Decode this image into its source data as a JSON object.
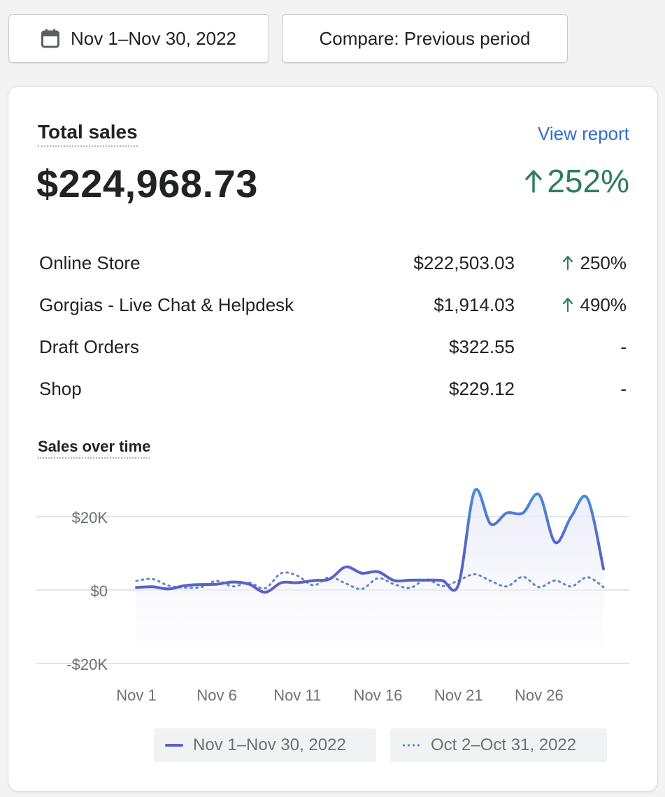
{
  "toolbar": {
    "date_range": "Nov 1–Nov 30, 2022",
    "compare": "Compare: Previous period"
  },
  "card": {
    "title": "Total sales",
    "view_report": "View report",
    "total": "$224,968.73",
    "total_change": "252%",
    "rows": [
      {
        "name": "Online Store",
        "amount": "$222,503.03",
        "change": "250%",
        "trend": "up"
      },
      {
        "name": "Gorgias - Live Chat & Helpdesk",
        "amount": "$1,914.03",
        "change": "490%",
        "trend": "up"
      },
      {
        "name": "Draft Orders",
        "amount": "$322.55",
        "change": "-",
        "trend": "none"
      },
      {
        "name": "Shop",
        "amount": "$229.12",
        "change": "-",
        "trend": "none"
      }
    ],
    "chart_title": "Sales over time"
  },
  "colors": {
    "accent": "#2c6ecb",
    "positive": "#2e7d5b",
    "current_series": "#5c63c9",
    "previous_series": "#5b8bc4"
  },
  "chart_data": {
    "type": "line",
    "ylim": [
      -20000,
      30000
    ],
    "y_ticks": [
      20000,
      0,
      -20000
    ],
    "y_tick_labels": [
      "$20K",
      "$0",
      "-$20K"
    ],
    "x_ticks": [
      1,
      6,
      11,
      16,
      21,
      26
    ],
    "x_tick_labels": [
      "Nov 1",
      "Nov 6",
      "Nov 11",
      "Nov 16",
      "Nov 21",
      "Nov 26"
    ],
    "x": [
      1,
      2,
      3,
      4,
      5,
      6,
      7,
      8,
      9,
      10,
      11,
      12,
      13,
      14,
      15,
      16,
      17,
      18,
      19,
      20,
      21,
      22,
      23,
      24,
      25,
      26,
      27,
      28,
      29,
      30
    ],
    "series": [
      {
        "name": "Nov 1–Nov 30, 2022",
        "style": "solid",
        "values": [
          700,
          900,
          300,
          1200,
          1500,
          1600,
          2200,
          1600,
          -600,
          2000,
          2000,
          2600,
          3000,
          6300,
          4600,
          5000,
          2600,
          2700,
          2700,
          2600,
          1500,
          27000,
          18000,
          21000,
          21000,
          26000,
          13000,
          20000,
          25000,
          5800
        ]
      },
      {
        "name": "Oct 2–Oct 31, 2022",
        "style": "dotted",
        "values": [
          2500,
          3000,
          1200,
          700,
          800,
          2500,
          1000,
          2000,
          500,
          4600,
          3900,
          1300,
          3500,
          1800,
          300,
          3200,
          1600,
          600,
          2900,
          1100,
          2600,
          4300,
          2500,
          1000,
          3600,
          800,
          2600,
          1000,
          3500,
          800
        ]
      }
    ]
  }
}
